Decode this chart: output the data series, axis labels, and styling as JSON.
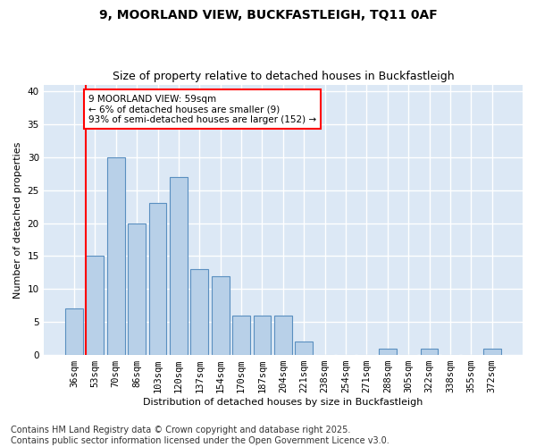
{
  "title1": "9, MOORLAND VIEW, BUCKFASTLEIGH, TQ11 0AF",
  "title2": "Size of property relative to detached houses in Buckfastleigh",
  "xlabel": "Distribution of detached houses by size in Buckfastleigh",
  "ylabel": "Number of detached properties",
  "categories": [
    "36sqm",
    "53sqm",
    "70sqm",
    "86sqm",
    "103sqm",
    "120sqm",
    "137sqm",
    "154sqm",
    "170sqm",
    "187sqm",
    "204sqm",
    "221sqm",
    "238sqm",
    "254sqm",
    "271sqm",
    "288sqm",
    "305sqm",
    "322sqm",
    "338sqm",
    "355sqm",
    "372sqm"
  ],
  "values": [
    7,
    15,
    30,
    20,
    23,
    27,
    13,
    12,
    6,
    6,
    6,
    2,
    0,
    0,
    0,
    1,
    0,
    1,
    0,
    0,
    1
  ],
  "bar_color": "#b8d0e8",
  "bar_edge_color": "#5a8fc0",
  "vline_color": "red",
  "annotation_text": "9 MOORLAND VIEW: 59sqm\n← 6% of detached houses are smaller (9)\n93% of semi-detached houses are larger (152) →",
  "annotation_box_color": "white",
  "annotation_box_edge_color": "red",
  "ylim": [
    0,
    41
  ],
  "yticks": [
    0,
    5,
    10,
    15,
    20,
    25,
    30,
    35,
    40
  ],
  "footer": "Contains HM Land Registry data © Crown copyright and database right 2025.\nContains public sector information licensed under the Open Government Licence v3.0.",
  "plot_bg_color": "#dce8f5",
  "fig_bg_color": "#ffffff",
  "grid_color": "#ffffff",
  "title_fontsize": 10,
  "subtitle_fontsize": 9,
  "footer_fontsize": 7,
  "axis_label_fontsize": 8,
  "tick_fontsize": 7.5
}
